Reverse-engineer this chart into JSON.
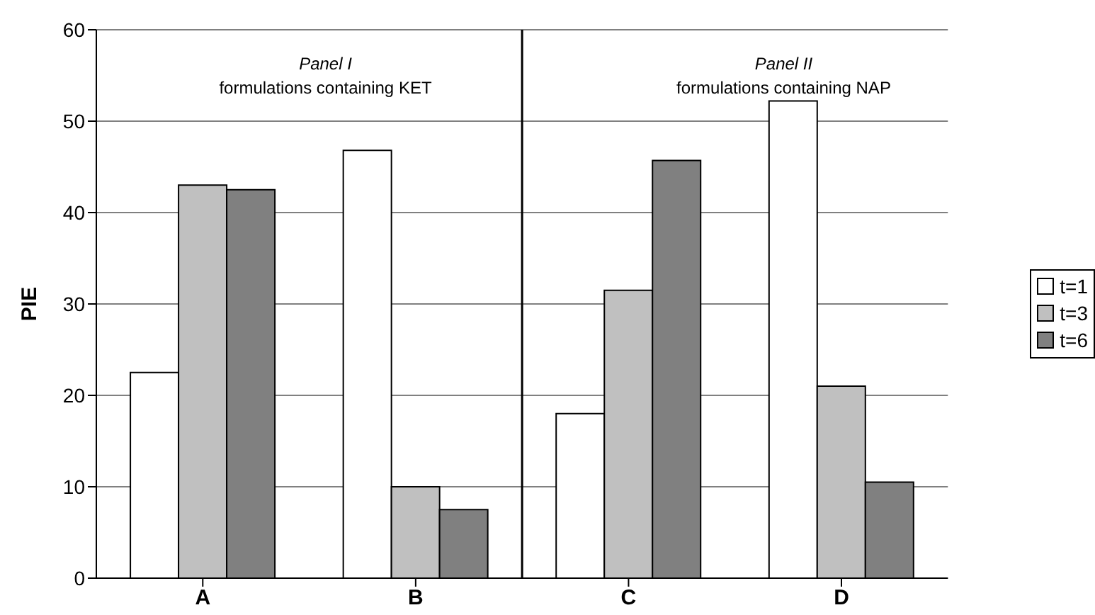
{
  "chart_data": {
    "type": "bar",
    "ylabel": "PIE",
    "categories": [
      "A",
      "B",
      "C",
      "D"
    ],
    "series": [
      {
        "name": "t=1",
        "color": "#ffffff",
        "values": [
          22.5,
          46.8,
          18,
          52.2
        ]
      },
      {
        "name": "t=3",
        "color": "#c0c0c0",
        "values": [
          43,
          10,
          31.5,
          21
        ]
      },
      {
        "name": "t=6",
        "color": "#808080",
        "values": [
          42.5,
          7.5,
          45.7,
          10.5
        ]
      }
    ],
    "annotations": [
      "Panel I\nformulations containing KET",
      "Panel II\nformulations containing NAP"
    ],
    "ref_lines": [
      {
        "axis": "x",
        "value": "C",
        "color": "#000000"
      }
    ],
    "ylim": [
      0,
      60
    ],
    "yticks": [
      0,
      10,
      20,
      30,
      40,
      50,
      60
    ],
    "grid": "y",
    "legend": "right"
  }
}
